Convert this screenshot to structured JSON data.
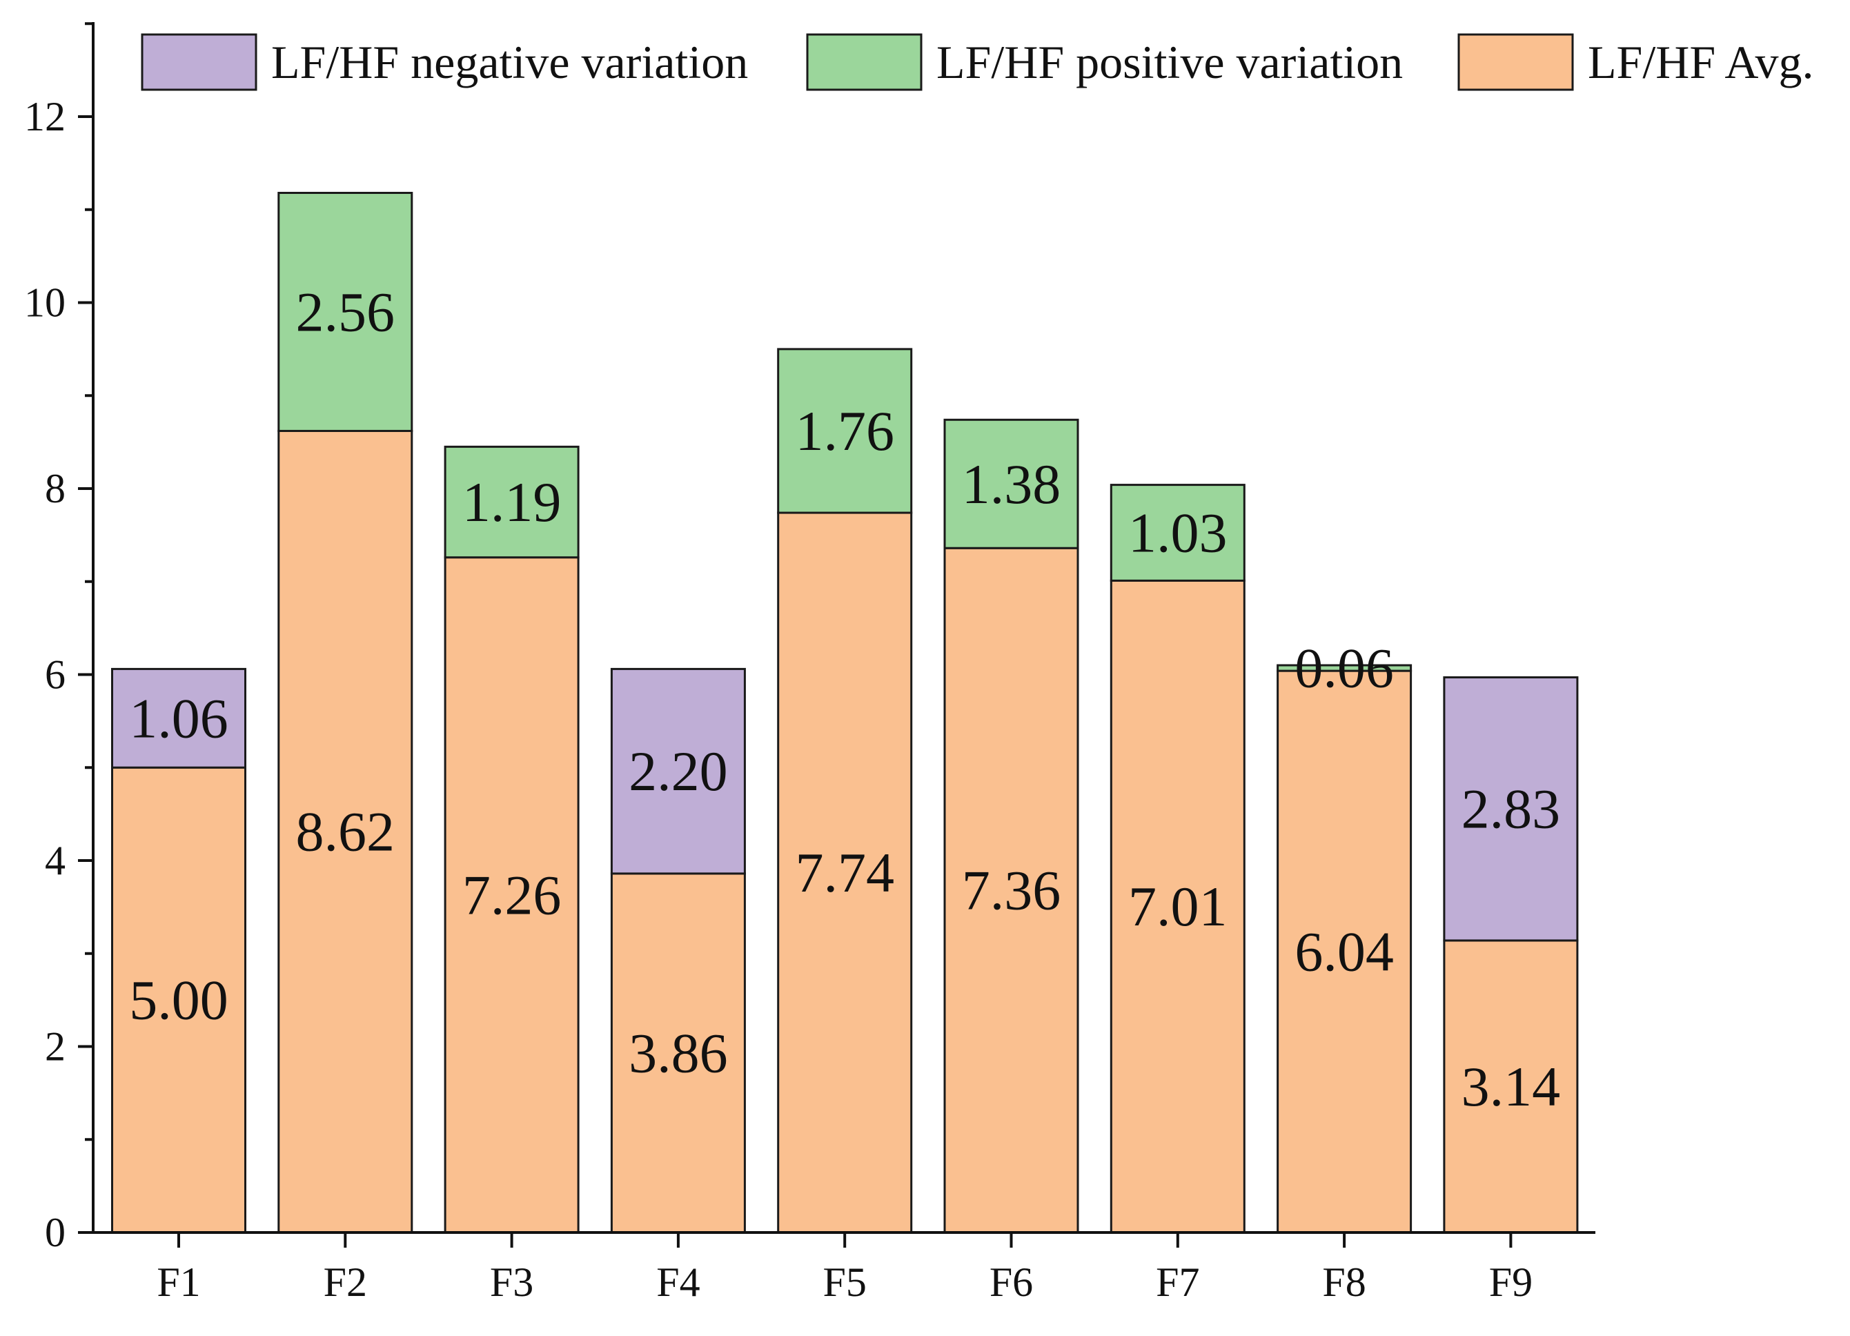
{
  "chart_data": {
    "type": "bar",
    "stacked": true,
    "title": "",
    "xlabel": "",
    "ylabel": "",
    "ylim": [
      0,
      13
    ],
    "yticks": [
      0,
      2,
      4,
      6,
      8,
      10,
      12
    ],
    "categories": [
      "F1",
      "F2",
      "F3",
      "F4",
      "F5",
      "F6",
      "F7",
      "F8",
      "F9"
    ],
    "series": [
      {
        "name": "LF/HF Avg.",
        "color": "#fac090",
        "values": [
          5.0,
          8.62,
          7.26,
          3.86,
          7.74,
          7.36,
          7.01,
          6.04,
          3.14
        ],
        "labels": [
          "5.00",
          "8.62",
          "7.26",
          "3.86",
          "7.74",
          "7.36",
          "7.01",
          "6.04",
          "3.14"
        ]
      },
      {
        "name": "LF/HF positive variation",
        "color": "#9bd69b",
        "values": [
          0,
          2.56,
          1.19,
          0,
          1.76,
          1.38,
          1.03,
          0.06,
          0
        ],
        "labels": [
          "",
          "2.56",
          "1.19",
          "",
          "1.76",
          "1.38",
          "1.03",
          "0.06",
          ""
        ]
      },
      {
        "name": "LF/HF negative variation",
        "color": "#bfaed6",
        "values": [
          1.06,
          0,
          0,
          2.2,
          0,
          0,
          0,
          0,
          2.83
        ],
        "labels": [
          "1.06",
          "",
          "",
          "2.20",
          "",
          "",
          "",
          "",
          "2.83"
        ]
      }
    ],
    "legend": {
      "placement": "top",
      "order": [
        "LF/HF negative variation",
        "LF/HF positive variation",
        "LF/HF Avg."
      ]
    }
  }
}
